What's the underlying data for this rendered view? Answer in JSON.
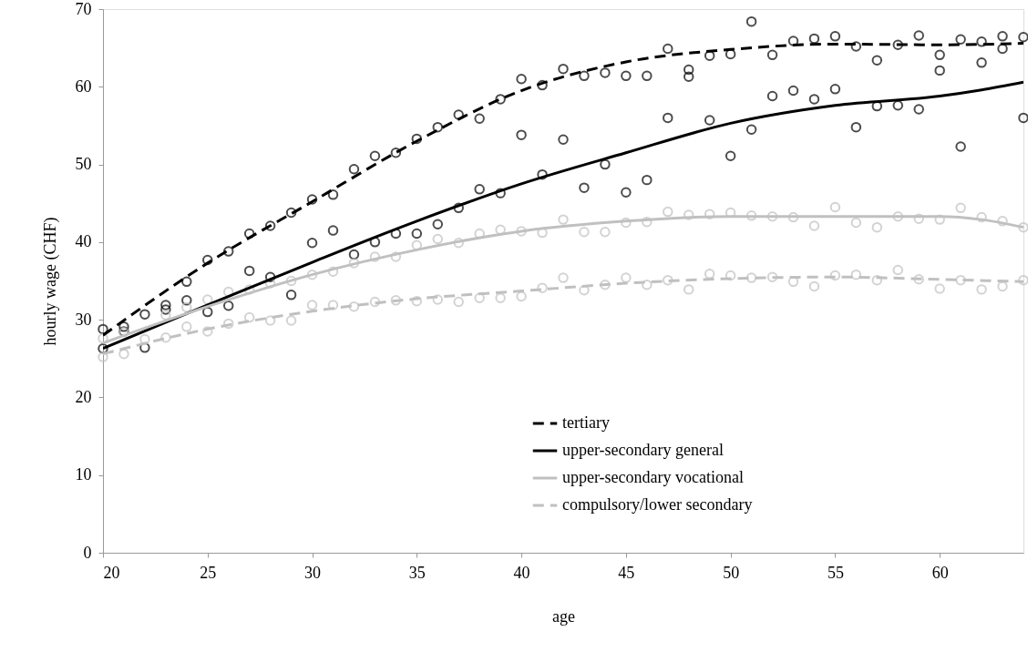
{
  "chart_data": {
    "type": "line",
    "xlabel": "age",
    "ylabel": "hourly wage (CHF)",
    "x": [
      20,
      21,
      22,
      23,
      24,
      25,
      26,
      27,
      28,
      29,
      30,
      31,
      32,
      33,
      34,
      35,
      36,
      37,
      38,
      39,
      40,
      41,
      42,
      43,
      44,
      45,
      46,
      47,
      48,
      49,
      50,
      51,
      52,
      53,
      54,
      55,
      56,
      57,
      58,
      59,
      60,
      61,
      62,
      63,
      64
    ],
    "xlim": [
      20,
      64
    ],
    "xticks": [
      20,
      25,
      30,
      35,
      40,
      45,
      50,
      55,
      60
    ],
    "ylim": [
      0,
      70
    ],
    "yticks": [
      0,
      10,
      20,
      30,
      40,
      50,
      60,
      70
    ],
    "grid": false,
    "legend": "bottom right",
    "marker": "none",
    "series": [
      {
        "type": "scatter",
        "marker": "circle",
        "color": "#000000",
        "values": [
          28.8,
          29.1,
          30.7,
          31.9,
          34.9,
          37.7,
          38.8,
          41.1,
          42.1,
          43.8,
          45.5,
          46.1,
          49.4,
          51.1,
          51.5,
          53.3,
          54.8,
          56.4,
          55.9,
          58.4,
          61.0,
          60.2,
          62.3,
          61.4,
          61.8,
          61.4,
          61.4,
          64.9,
          62.2,
          64.0,
          64.2,
          68.4,
          64.1,
          65.9,
          66.2,
          66.5,
          65.2,
          63.4,
          65.4,
          66.6,
          64.1,
          66.1,
          65.8,
          64.9,
          66.4
        ]
      },
      {
        "type": "scatter",
        "marker": "circle",
        "color": "#000000",
        "values": [
          26.3,
          28.5,
          26.4,
          31.3,
          32.5,
          31.0,
          31.8,
          36.3,
          35.5,
          33.2,
          39.9,
          41.5,
          38.4,
          40.0,
          41.1,
          41.1,
          42.3,
          44.4,
          46.8,
          46.3,
          53.8,
          48.7,
          53.2,
          47.0,
          50.0,
          46.4,
          48.0,
          56.0,
          61.3,
          55.7,
          51.1,
          54.5,
          58.8,
          59.5,
          58.4,
          59.7,
          54.8,
          57.5,
          57.6,
          57.1,
          62.1,
          52.3,
          63.1,
          66.5,
          56.0
        ]
      },
      {
        "type": "scatter",
        "marker": "circle",
        "color": "#c0c0c0",
        "values": [
          27.6,
          28.4,
          null,
          30.6,
          31.6,
          32.6,
          33.6,
          33.9,
          34.7,
          35.0,
          35.8,
          36.2,
          37.3,
          38.1,
          38.1,
          39.6,
          40.4,
          39.9,
          41.1,
          41.6,
          41.4,
          41.2,
          42.9,
          41.3,
          41.3,
          42.5,
          42.6,
          43.9,
          43.5,
          43.6,
          43.8,
          43.4,
          43.3,
          43.2,
          42.1,
          44.5,
          42.5,
          41.9,
          43.3,
          43.0,
          42.9,
          44.4,
          43.2,
          42.7,
          41.9
        ]
      },
      {
        "type": "scatter",
        "marker": "circle",
        "color": "#c0c0c0",
        "values": [
          25.2,
          25.6,
          27.5,
          27.7,
          29.1,
          28.5,
          29.5,
          30.3,
          29.9,
          29.9,
          31.9,
          31.9,
          31.7,
          32.3,
          32.5,
          32.4,
          32.6,
          32.3,
          32.8,
          32.8,
          33.0,
          34.1,
          35.4,
          33.8,
          34.5,
          35.4,
          34.5,
          35.1,
          33.9,
          35.9,
          35.7,
          35.4,
          35.5,
          34.9,
          34.3,
          35.7,
          35.8,
          35.1,
          36.4,
          35.2,
          34.0,
          35.1,
          33.9,
          34.3,
          35.1
        ]
      },
      {
        "name": "tertiary",
        "color": "#000000",
        "line_style": "dashed",
        "x": [
          20,
          25,
          30,
          35,
          40,
          45,
          50,
          55,
          60,
          64
        ],
        "values": [
          28.0,
          37.3,
          45.2,
          53.0,
          59.5,
          63.2,
          64.8,
          65.5,
          65.4,
          65.6
        ]
      },
      {
        "name": "upper-secondary general",
        "color": "#000000",
        "line_style": "solid",
        "x": [
          20,
          25,
          30,
          35,
          40,
          45,
          50,
          55,
          60,
          62,
          64
        ],
        "values": [
          26.3,
          31.9,
          37.4,
          42.7,
          47.5,
          51.5,
          55.3,
          57.6,
          58.8,
          59.6,
          60.6
        ]
      },
      {
        "name": "upper-secondary vocational",
        "color": "#c0c0c0",
        "line_style": "solid",
        "x": [
          20,
          25,
          30,
          35,
          40,
          45,
          50,
          55,
          60,
          62,
          64
        ],
        "values": [
          27.0,
          31.7,
          35.8,
          39.0,
          41.4,
          42.7,
          43.3,
          43.3,
          43.3,
          42.9,
          41.9
        ]
      },
      {
        "name": "compulsory/lower secondary",
        "color": "#c0c0c0",
        "line_style": "dashed",
        "x": [
          20,
          25,
          30,
          35,
          40,
          45,
          50,
          55,
          60,
          64
        ],
        "values": [
          25.6,
          28.8,
          31.1,
          32.7,
          33.7,
          34.7,
          35.3,
          35.5,
          35.2,
          34.9
        ]
      }
    ]
  }
}
